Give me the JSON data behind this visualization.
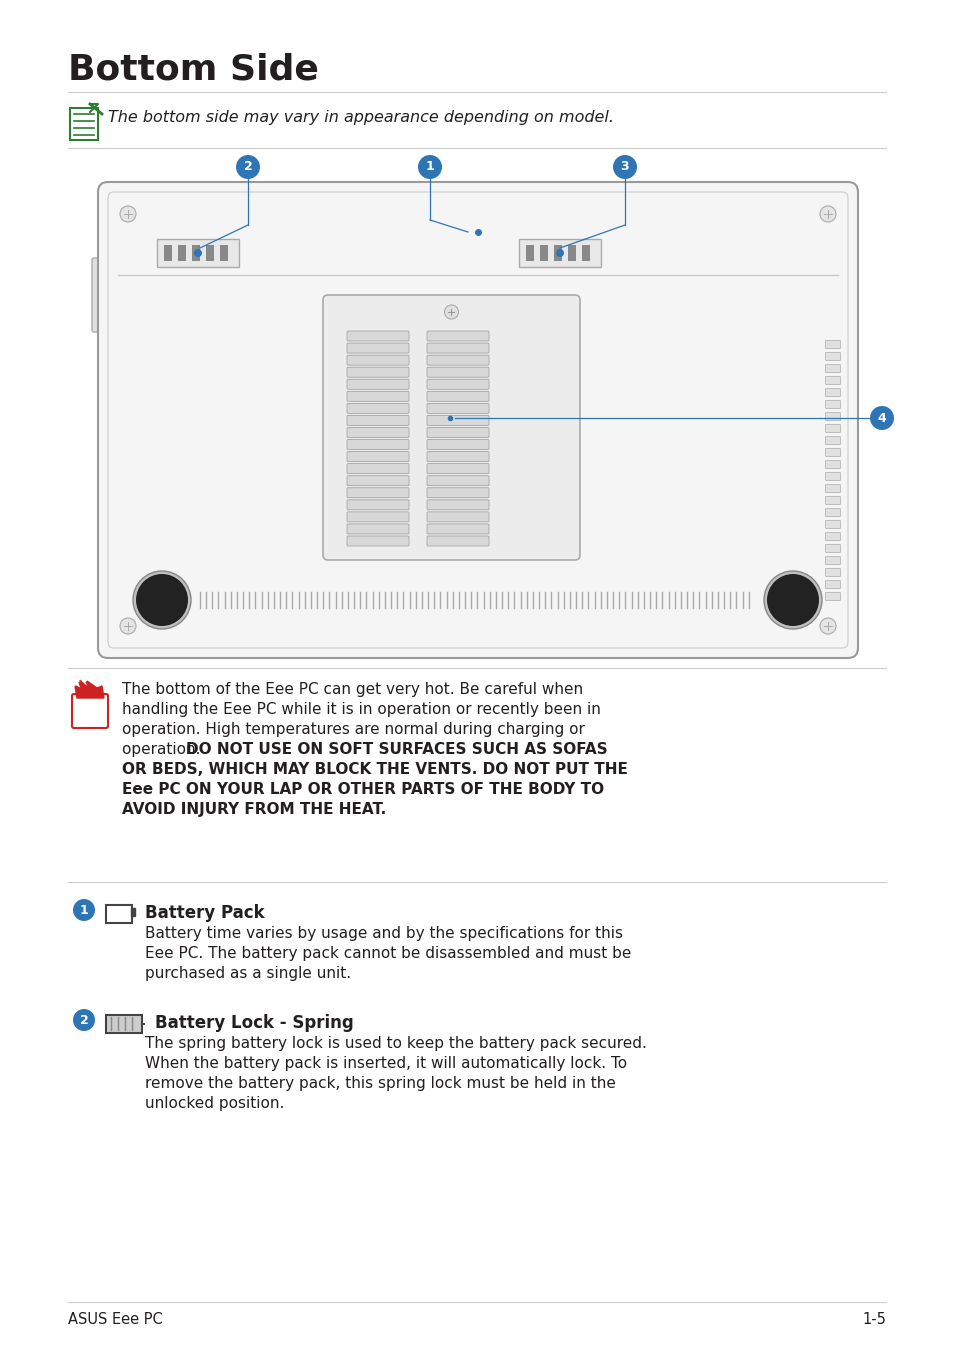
{
  "title": "Bottom Side",
  "note_text": "The bottom side may vary in appearance depending on model.",
  "warning_text_line1": "The bottom of the Eee PC can get very hot. Be careful when",
  "warning_text_line2": "handling the Eee PC while it is in operation or recently been in",
  "warning_text_line3": "operation. High temperatures are normal during charging or",
  "warning_text_line4_normal": "operation. ",
  "warning_text_line4_bold": "DO NOT USE ON SOFT SURFACES SUCH AS SOFAS",
  "warning_text_line5": "OR BEDS, WHICH MAY BLOCK THE VENTS. DO NOT PUT THE",
  "warning_text_line6": "Eee PC ON YOUR LAP OR OTHER PARTS OF THE BODY TO",
  "warning_text_line7": "AVOID INJURY FROM THE HEAT.",
  "section1_title": "Battery Pack",
  "section1_text_line1": "Battery time varies by usage and by the specifications for this",
  "section1_text_line2": "Eee PC. The battery pack cannot be disassembled and must be",
  "section1_text_line3": "purchased as a single unit.",
  "section2_title": "Battery Lock - Spring",
  "section2_text_line1": "The spring battery lock is used to keep the battery pack secured.",
  "section2_text_line2": "When the battery pack is inserted, it will automatically lock. To",
  "section2_text_line3": "remove the battery pack, this spring lock must be held in the",
  "section2_text_line4": "unlocked position.",
  "footer_left": "ASUS Eee PC",
  "footer_right": "1-5",
  "bg_color": "#ffffff",
  "text_color": "#231f20",
  "gray_line": "#cccccc",
  "blue_callout": "#2e75b6",
  "laptop_body_fill": "#f0f0f0",
  "laptop_body_stroke": "#aaaaaa",
  "mem_fill": "#e8e8e8",
  "mem_stroke": "#999999",
  "latch_fill": "#d8d8d8",
  "vent_color": "#bbbbbb",
  "screw_fill": "#e0e0e0",
  "speaker_fill": "#333333"
}
